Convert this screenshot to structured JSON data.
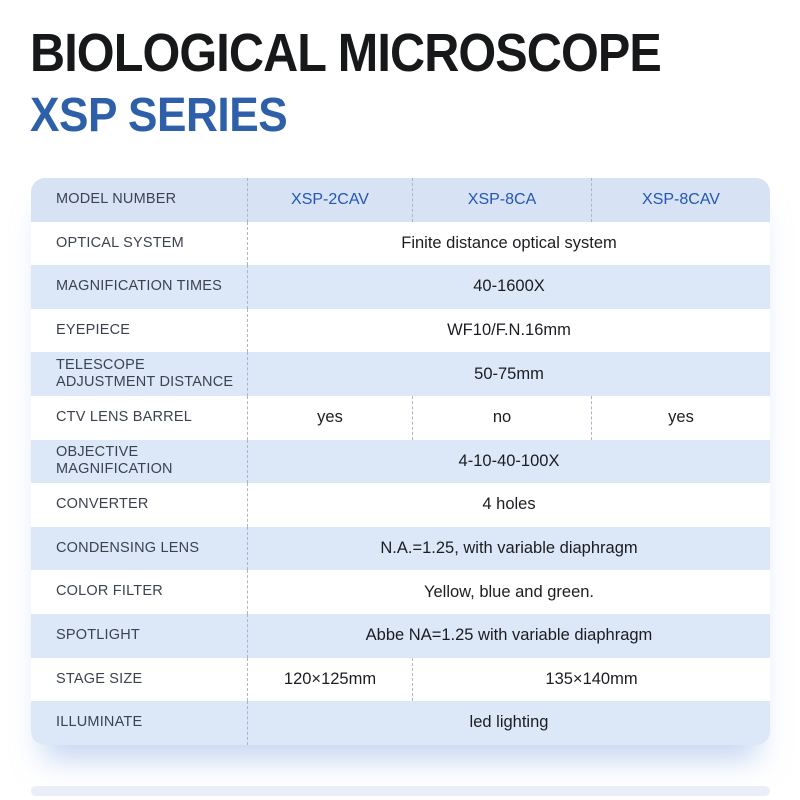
{
  "header": {
    "title": "BIOLOGICAL MICROSCOPE",
    "subtitle": "XSP SERIES"
  },
  "colors": {
    "title_black": "#17181a",
    "subtitle_blue": "#2e5fa9",
    "model_blue": "#2356b6",
    "row_blue": "#dce7f7",
    "label_gray": "#3c434e",
    "dash_gray": "#a9b5c9"
  },
  "table": {
    "header_row": {
      "label": "MODEL NUMBER",
      "models": [
        "XSP-2CAV",
        "XSP-8CA",
        "XSP-8CAV"
      ]
    },
    "rows": [
      {
        "label": "OPTICAL SYSTEM",
        "values": [
          {
            "text": "Finite distance optical system",
            "span": 3
          }
        ]
      },
      {
        "label": "MAGNIFICATION TIMES",
        "values": [
          {
            "text": "40-1600X",
            "span": 3
          }
        ]
      },
      {
        "label": "EYEPIECE",
        "values": [
          {
            "text": "WF10/F.N.16mm",
            "span": 3
          }
        ]
      },
      {
        "label": "TELESCOPE\nADJUSTMENT DISTANCE",
        "values": [
          {
            "text": "50-75mm",
            "span": 3
          }
        ]
      },
      {
        "label": "CTV LENS BARREL",
        "values": [
          {
            "text": "yes",
            "span": 1
          },
          {
            "text": "no",
            "span": 1
          },
          {
            "text": "yes",
            "span": 1
          }
        ]
      },
      {
        "label": "OBJECTIVE\nMAGNIFICATION",
        "values": [
          {
            "text": "4-10-40-100X",
            "span": 3
          }
        ]
      },
      {
        "label": "CONVERTER",
        "values": [
          {
            "text": "4 holes",
            "span": 3
          }
        ]
      },
      {
        "label": "CONDENSING LENS",
        "values": [
          {
            "text": "N.A.=1.25, with variable diaphragm",
            "span": 3
          }
        ]
      },
      {
        "label": "COLOR FILTER",
        "values": [
          {
            "text": "Yellow, blue and green.",
            "span": 3
          }
        ]
      },
      {
        "label": "SPOTLIGHT",
        "values": [
          {
            "text": "Abbe NA=1.25 with variable diaphragm",
            "span": 3
          }
        ]
      },
      {
        "label": "STAGE SIZE",
        "values": [
          {
            "text": "120×125mm",
            "span": 1
          },
          {
            "text": "135×140mm",
            "span": 2
          }
        ]
      },
      {
        "label": "ILLUMINATE",
        "values": [
          {
            "text": "led lighting",
            "span": 3
          }
        ]
      }
    ]
  }
}
